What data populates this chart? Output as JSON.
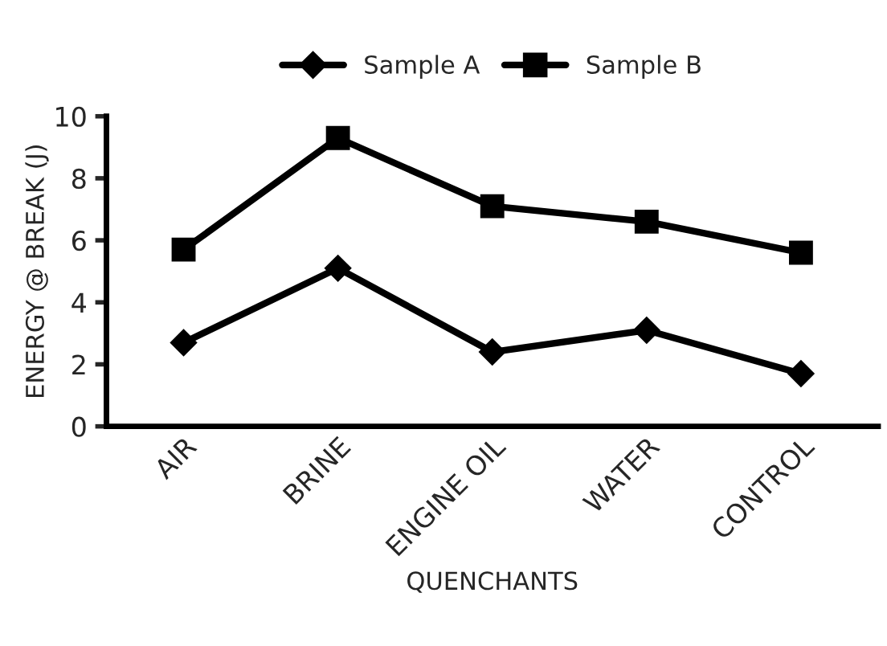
{
  "chart_data": {
    "type": "line",
    "xlabel": "QUENCHANTS",
    "ylabel": "ENERGY @ BREAK (J)",
    "categories": [
      "AIR",
      "BRINE",
      "ENGINE OIL",
      "WATER",
      "CONTROL"
    ],
    "series": [
      {
        "name": "Sample A",
        "color": "#000000",
        "marker": "diamond",
        "values": [
          2.7,
          5.1,
          2.4,
          3.1,
          1.7
        ]
      },
      {
        "name": "Sample B",
        "color": "#000000",
        "marker": "square",
        "values": [
          5.7,
          9.3,
          7.1,
          6.6,
          5.6
        ]
      }
    ],
    "ylim": [
      0,
      10
    ],
    "yticks": [
      0,
      2,
      4,
      6,
      8,
      10
    ],
    "grid": false,
    "legend": "top",
    "line_style": "solid"
  }
}
